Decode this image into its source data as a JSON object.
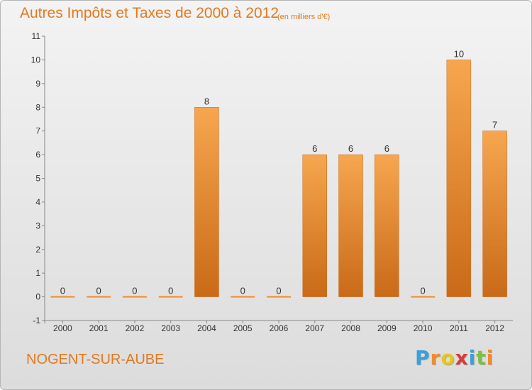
{
  "chart_data": {
    "type": "bar",
    "title": "Autres Impôts et Taxes de 2000 à 2012",
    "subtitle": "(en milliers d'€)",
    "categories": [
      "2000",
      "2001",
      "2002",
      "2003",
      "2004",
      "2005",
      "2006",
      "2007",
      "2008",
      "2009",
      "2010",
      "2011",
      "2012"
    ],
    "values": [
      0,
      0,
      0,
      0,
      8,
      0,
      0,
      6,
      6,
      6,
      0,
      10,
      7
    ],
    "data_labels": [
      "0",
      "0",
      "0",
      "0",
      "8",
      "0",
      "0",
      "6",
      "6",
      "6",
      "0",
      "10",
      "7"
    ],
    "y_ticks": [
      "-1",
      "0",
      "1",
      "2",
      "3",
      "4",
      "5",
      "6",
      "7",
      "8",
      "9",
      "10",
      "11"
    ],
    "ylim": [
      -1,
      11
    ],
    "bar_color": "#f08c2e",
    "grid": false
  },
  "location": "NOGENT-SUR-AUBE",
  "brand": {
    "letters": [
      "P",
      "r",
      "o",
      "x",
      "i",
      "t",
      "i"
    ],
    "colors": [
      "#3aa0d8",
      "#f08c2e",
      "#e8c61c",
      "#d83a3a",
      "#3aa0d8",
      "#7cc142",
      "#f08c2e"
    ]
  }
}
